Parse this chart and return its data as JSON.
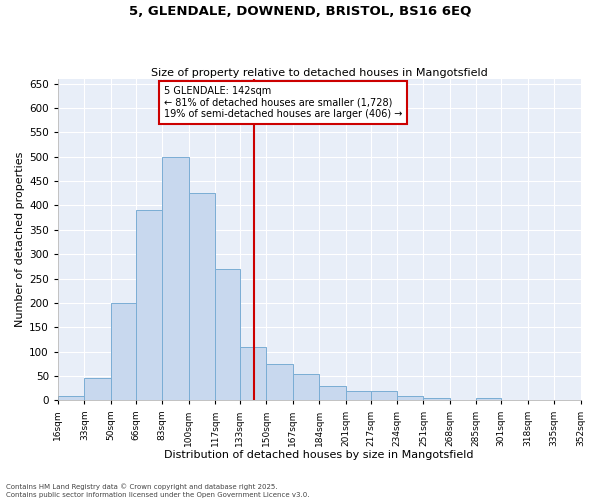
{
  "title": "5, GLENDALE, DOWNEND, BRISTOL, BS16 6EQ",
  "subtitle": "Size of property relative to detached houses in Mangotsfield",
  "xlabel": "Distribution of detached houses by size in Mangotsfield",
  "ylabel": "Number of detached properties",
  "bar_color": "#c8d8ee",
  "bar_edge_color": "#7aadd4",
  "background_color": "#e8eef8",
  "grid_color": "#ffffff",
  "vline_x": 142,
  "vline_color": "#cc0000",
  "annotation_title": "5 GLENDALE: 142sqm",
  "annotation_line1": "← 81% of detached houses are smaller (1,728)",
  "annotation_line2": "19% of semi-detached houses are larger (406) →",
  "annotation_box_color": "#ffffff",
  "annotation_box_edge": "#cc0000",
  "footer_line1": "Contains HM Land Registry data © Crown copyright and database right 2025.",
  "footer_line2": "Contains public sector information licensed under the Open Government Licence v3.0.",
  "bin_edges": [
    16,
    33,
    50,
    66,
    83,
    100,
    117,
    133,
    150,
    167,
    184,
    201,
    217,
    234,
    251,
    268,
    285,
    301,
    318,
    335,
    352
  ],
  "bin_labels": [
    "16sqm",
    "33sqm",
    "50sqm",
    "66sqm",
    "83sqm",
    "100sqm",
    "117sqm",
    "133sqm",
    "150sqm",
    "167sqm",
    "184sqm",
    "201sqm",
    "217sqm",
    "234sqm",
    "251sqm",
    "268sqm",
    "285sqm",
    "301sqm",
    "318sqm",
    "335sqm",
    "352sqm"
  ],
  "bar_heights": [
    10,
    45,
    200,
    390,
    500,
    425,
    270,
    110,
    75,
    55,
    30,
    20,
    20,
    10,
    5,
    0,
    5,
    0,
    0,
    0
  ],
  "ylim": [
    0,
    660
  ],
  "yticks": [
    0,
    50,
    100,
    150,
    200,
    250,
    300,
    350,
    400,
    450,
    500,
    550,
    600,
    650
  ]
}
